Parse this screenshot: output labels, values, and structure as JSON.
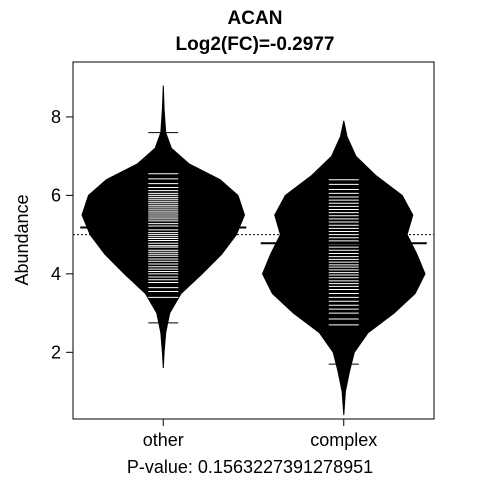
{
  "chart_data": {
    "type": "beanplot",
    "title": "ACAN",
    "subtitle": "Log2(FC)=-0.2977",
    "ylabel": "Abundance",
    "xlabel": "P-value: 0.1563227391278951",
    "ylim": [
      0.3,
      9.4
    ],
    "yticks": [
      "2",
      "4",
      "6",
      "8"
    ],
    "overall_mean": 5.0,
    "categories": [
      "other",
      "complex"
    ],
    "groups": [
      {
        "name": "other",
        "mean": 5.18,
        "density": [
          [
            1.6,
            0.0
          ],
          [
            2.0,
            0.01
          ],
          [
            2.5,
            0.03
          ],
          [
            3.0,
            0.08
          ],
          [
            3.5,
            0.22
          ],
          [
            4.0,
            0.48
          ],
          [
            4.5,
            0.72
          ],
          [
            5.0,
            0.9
          ],
          [
            5.5,
            1.0
          ],
          [
            6.0,
            0.92
          ],
          [
            6.4,
            0.7
          ],
          [
            6.8,
            0.32
          ],
          [
            7.2,
            0.1
          ],
          [
            7.6,
            0.03
          ],
          [
            8.2,
            0.01
          ],
          [
            8.8,
            0.0
          ]
        ],
        "points": [
          2.75,
          3.4,
          3.55,
          3.65,
          3.78,
          3.85,
          3.92,
          4.0,
          4.06,
          4.12,
          4.18,
          4.25,
          4.32,
          4.38,
          4.45,
          4.5,
          4.55,
          4.6,
          4.68,
          4.72,
          4.78,
          4.85,
          4.9,
          4.95,
          5.0,
          5.05,
          5.12,
          5.18,
          5.22,
          5.28,
          5.35,
          5.4,
          5.45,
          5.5,
          5.55,
          5.6,
          5.65,
          5.7,
          5.75,
          5.8,
          5.85,
          5.9,
          5.95,
          6.0,
          6.05,
          6.12,
          6.2,
          6.3,
          6.42,
          6.55,
          7.6
        ]
      },
      {
        "name": "complex",
        "mean": 4.78,
        "density": [
          [
            0.4,
            0.0
          ],
          [
            1.0,
            0.02
          ],
          [
            1.5,
            0.07
          ],
          [
            2.0,
            0.13
          ],
          [
            2.5,
            0.3
          ],
          [
            3.0,
            0.62
          ],
          [
            3.5,
            0.88
          ],
          [
            4.0,
            1.0
          ],
          [
            4.5,
            0.9
          ],
          [
            5.0,
            0.78
          ],
          [
            5.5,
            0.85
          ],
          [
            6.0,
            0.72
          ],
          [
            6.5,
            0.4
          ],
          [
            7.0,
            0.15
          ],
          [
            7.5,
            0.04
          ],
          [
            7.9,
            0.0
          ]
        ],
        "points": [
          1.7,
          2.7,
          2.85,
          3.0,
          3.1,
          3.2,
          3.3,
          3.4,
          3.5,
          3.6,
          3.68,
          3.75,
          3.82,
          3.9,
          3.97,
          4.03,
          4.1,
          4.17,
          4.23,
          4.3,
          4.37,
          4.44,
          4.52,
          4.6,
          4.68,
          4.76,
          4.84,
          4.92,
          5.0,
          5.08,
          5.16,
          5.24,
          5.32,
          5.4,
          5.48,
          5.56,
          5.64,
          5.72,
          5.8,
          5.88,
          5.96,
          6.05,
          6.15,
          6.28,
          6.4,
          6.52,
          6.65
        ]
      }
    ]
  }
}
